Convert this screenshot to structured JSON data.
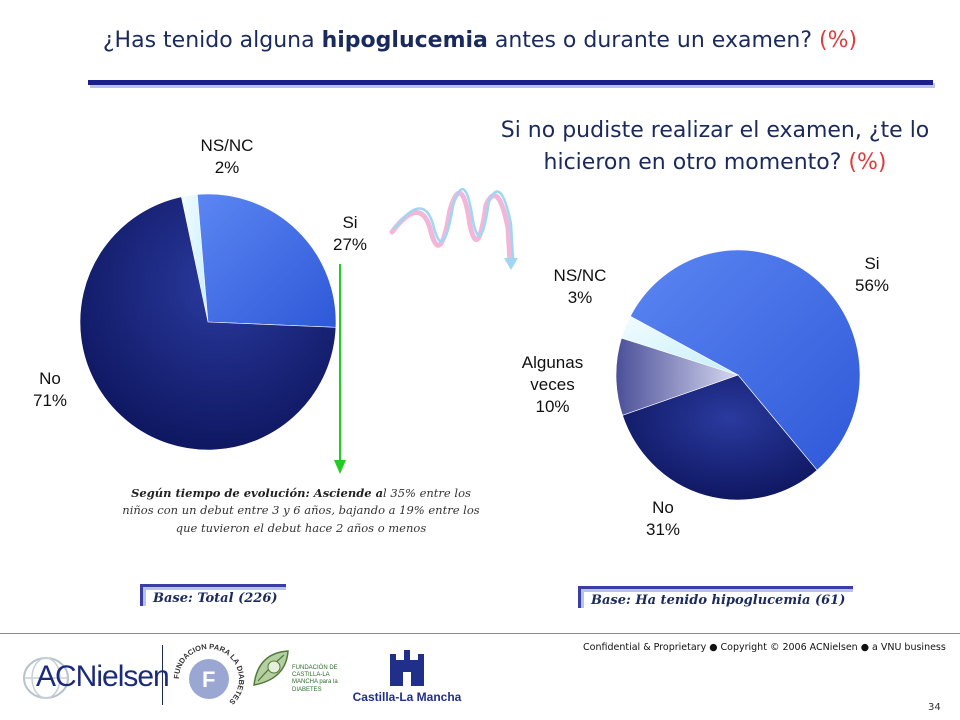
{
  "title": {
    "prefix": "¿Has tenido alguna ",
    "highlight": "hipoglucemia",
    "suffix": " antes o durante un examen? ",
    "unit": "(%)"
  },
  "subtitle": {
    "line1": "Si no pudiste realizar el examen, ¿te lo",
    "line2": "hicieron en otro momento? ",
    "unit": "(%)"
  },
  "note": {
    "bold": "Según tiempo de evolución: Asciende a",
    "text": "l 35% entre los niños con un debut entre 3 y 6 años, bajando a 19% entre los que tuvieron el debut hace 2 años o menos"
  },
  "base_left": "Base: Total (226)",
  "base_right": "Base: Ha tenido hipoglucemia (61)",
  "footer": {
    "confidential": "Confidential & Proprietary ● Copyright © 2006 ACNielsen ● a VNU business",
    "page": "34",
    "logo_acnielsen": "ACNielsen",
    "logo_fundacion": "FUNDACION PARA LA DIABETES",
    "logo_fcm": "FUNDACIÓN DE CASTILLA-LA MANCHA para la DIABETES",
    "logo_clm": "Castilla-La Mancha"
  },
  "colors": {
    "title": "#1b2a5c",
    "unit": "#e23a3a",
    "rule": "#1a1f8a",
    "no": "#0f1868",
    "si": "#3d6ae6",
    "nsnc": "#d8f6ff",
    "algunas": "#8a8fc4",
    "arrow": "#22cc22"
  },
  "chart_data": [
    {
      "type": "pie",
      "title": "¿Has tenido alguna hipoglucemia antes o durante un examen? (%)",
      "slices": [
        {
          "label": "NS/NC",
          "value": 2,
          "display": "2%"
        },
        {
          "label": "Si",
          "value": 27,
          "display": "27%"
        },
        {
          "label": "No",
          "value": 71,
          "display": "71%"
        }
      ]
    },
    {
      "type": "pie",
      "title": "Si no pudiste realizar el examen, ¿te lo hicieron en otro momento? (%)",
      "slices": [
        {
          "label": "Si",
          "value": 56,
          "display": "56%"
        },
        {
          "label": "No",
          "value": 31,
          "display": "31%"
        },
        {
          "label": "Algunas veces",
          "value": 10,
          "display": "10%"
        },
        {
          "label": "NS/NC",
          "value": 3,
          "display": "3%"
        }
      ]
    }
  ]
}
